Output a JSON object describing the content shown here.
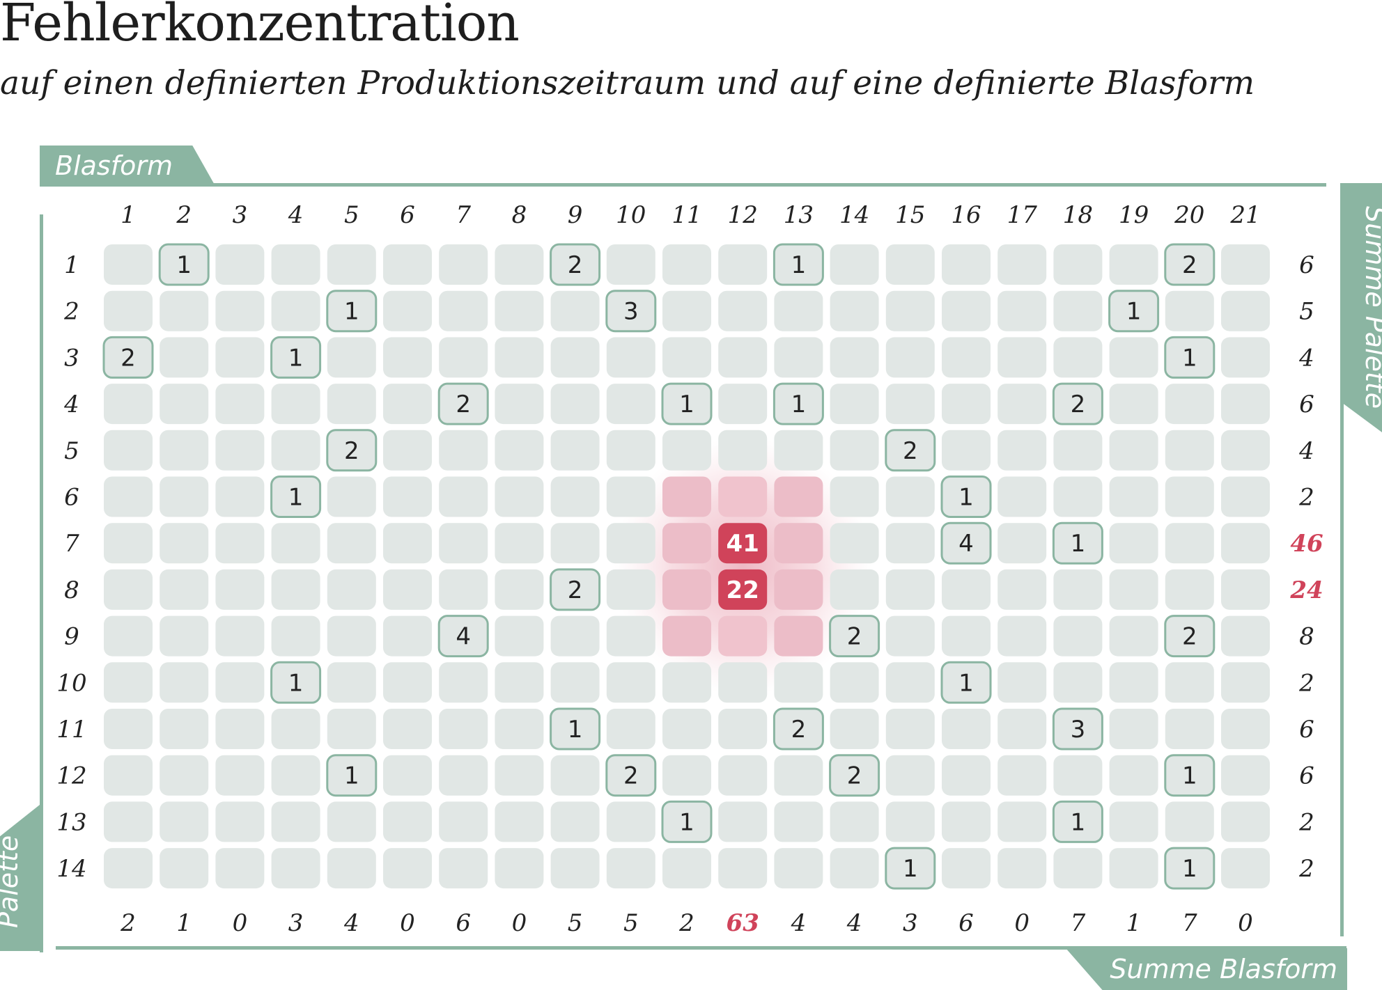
{
  "chart_data": {
    "type": "heatmap",
    "title": "Fehlerkonzentration",
    "subtitle": "auf einen definierten Produktionszeitraum und auf eine definierte Blasform",
    "xlabel": "Blasform",
    "ylabel": "Palette",
    "col_sum_label": "Summe Blasform",
    "row_sum_label": "Summe Palette",
    "x": [
      "1",
      "2",
      "3",
      "4",
      "5",
      "6",
      "7",
      "8",
      "9",
      "10",
      "11",
      "12",
      "13",
      "14",
      "15",
      "16",
      "17",
      "18",
      "19",
      "20",
      "21"
    ],
    "y": [
      "1",
      "2",
      "3",
      "4",
      "5",
      "6",
      "7",
      "8",
      "9",
      "10",
      "11",
      "12",
      "13",
      "14"
    ],
    "values": [
      [
        0,
        1,
        0,
        0,
        0,
        0,
        0,
        0,
        2,
        0,
        0,
        0,
        1,
        0,
        0,
        0,
        0,
        0,
        0,
        2,
        0
      ],
      [
        0,
        0,
        0,
        0,
        1,
        0,
        0,
        0,
        0,
        3,
        0,
        0,
        0,
        0,
        0,
        0,
        0,
        0,
        1,
        0,
        0
      ],
      [
        2,
        0,
        0,
        1,
        0,
        0,
        0,
        0,
        0,
        0,
        0,
        0,
        0,
        0,
        0,
        0,
        0,
        0,
        0,
        1,
        0
      ],
      [
        0,
        0,
        0,
        0,
        0,
        0,
        2,
        0,
        0,
        0,
        1,
        0,
        1,
        0,
        0,
        0,
        0,
        2,
        0,
        0,
        0
      ],
      [
        0,
        0,
        0,
        0,
        2,
        0,
        0,
        0,
        0,
        0,
        0,
        0,
        0,
        0,
        2,
        0,
        0,
        0,
        0,
        0,
        0
      ],
      [
        0,
        0,
        0,
        1,
        0,
        0,
        0,
        0,
        0,
        0,
        0,
        0,
        0,
        0,
        0,
        1,
        0,
        0,
        0,
        0,
        0
      ],
      [
        0,
        0,
        0,
        0,
        0,
        0,
        0,
        0,
        0,
        0,
        0,
        41,
        0,
        0,
        0,
        4,
        0,
        1,
        0,
        0,
        0
      ],
      [
        0,
        0,
        0,
        0,
        0,
        0,
        0,
        0,
        2,
        0,
        0,
        22,
        0,
        0,
        0,
        0,
        0,
        0,
        0,
        0,
        0
      ],
      [
        0,
        0,
        0,
        0,
        0,
        0,
        4,
        0,
        0,
        0,
        0,
        0,
        0,
        2,
        0,
        0,
        0,
        0,
        0,
        2,
        0
      ],
      [
        0,
        0,
        0,
        1,
        0,
        0,
        0,
        0,
        0,
        0,
        0,
        0,
        0,
        0,
        0,
        1,
        0,
        0,
        0,
        0,
        0
      ],
      [
        0,
        0,
        0,
        0,
        0,
        0,
        0,
        0,
        1,
        0,
        0,
        0,
        2,
        0,
        0,
        0,
        0,
        3,
        0,
        0,
        0
      ],
      [
        0,
        0,
        0,
        0,
        1,
        0,
        0,
        0,
        0,
        2,
        0,
        0,
        0,
        2,
        0,
        0,
        0,
        0,
        0,
        1,
        0
      ],
      [
        0,
        0,
        0,
        0,
        0,
        0,
        0,
        0,
        0,
        0,
        1,
        0,
        0,
        0,
        0,
        0,
        0,
        1,
        0,
        0,
        0
      ],
      [
        0,
        0,
        0,
        0,
        0,
        0,
        0,
        0,
        0,
        0,
        0,
        0,
        0,
        0,
        1,
        0,
        0,
        0,
        0,
        1,
        0
      ]
    ],
    "row_sums": [
      6,
      5,
      4,
      6,
      4,
      2,
      46,
      24,
      8,
      2,
      6,
      6,
      2,
      2
    ],
    "col_sums": [
      2,
      1,
      0,
      3,
      4,
      0,
      6,
      0,
      5,
      5,
      2,
      63,
      4,
      4,
      3,
      6,
      0,
      7,
      1,
      7,
      0
    ],
    "hotspot": {
      "row": "7",
      "col": "12"
    },
    "colors": {
      "empty_cell": "#e1e7e5",
      "cell_outline": "#8bb5a2",
      "hot_cell": "#d0435a",
      "hot_glow": "#e8a1b1",
      "hot_label": "#d0435a",
      "accent_green": "#8bb5a2"
    }
  }
}
